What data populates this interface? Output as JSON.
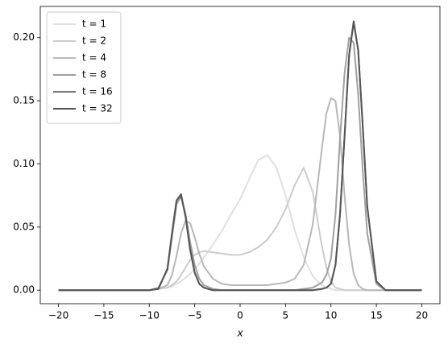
{
  "chart_data": {
    "type": "line",
    "xlabel": "x",
    "x": [
      -20,
      -15,
      -10,
      -9,
      -8,
      -7.5,
      -7,
      -6.5,
      -6,
      -5.5,
      -5,
      -4.5,
      -4,
      -3,
      -2,
      -1,
      0,
      1,
      2,
      3,
      4,
      5,
      6,
      7,
      8,
      9,
      9.5,
      10,
      10.5,
      11,
      11.5,
      12,
      12.5,
      13,
      13.5,
      14,
      15,
      16,
      17,
      20
    ],
    "series": [
      {
        "name": "t = 1",
        "color": "#e0e0e0",
        "values": [
          0,
          0,
          0,
          0.001,
          0.002,
          0.003,
          0.005,
          0.007,
          0.01,
          0.013,
          0.017,
          0.021,
          0.026,
          0.036,
          0.047,
          0.06,
          0.072,
          0.088,
          0.103,
          0.107,
          0.097,
          0.075,
          0.048,
          0.026,
          0.011,
          0.004,
          0.002,
          0.001,
          0,
          0,
          0,
          0,
          0,
          0,
          0,
          0,
          0,
          0,
          0,
          0
        ]
      },
      {
        "name": "t = 2",
        "color": "#cccccc",
        "values": [
          0,
          0,
          0,
          0.001,
          0.002,
          0.004,
          0.007,
          0.012,
          0.018,
          0.024,
          0.028,
          0.03,
          0.031,
          0.03,
          0.029,
          0.028,
          0.028,
          0.03,
          0.034,
          0.04,
          0.05,
          0.064,
          0.083,
          0.097,
          0.078,
          0.035,
          0.018,
          0.007,
          0.002,
          0.001,
          0,
          0,
          0,
          0,
          0,
          0,
          0,
          0,
          0,
          0
        ]
      },
      {
        "name": "t = 4",
        "color": "#b8b8b8",
        "values": [
          0,
          0,
          0,
          0.001,
          0.004,
          0.012,
          0.027,
          0.045,
          0.055,
          0.053,
          0.042,
          0.029,
          0.019,
          0.009,
          0.005,
          0.004,
          0.004,
          0.004,
          0.004,
          0.004,
          0.005,
          0.006,
          0.009,
          0.02,
          0.052,
          0.112,
          0.14,
          0.152,
          0.15,
          0.122,
          0.075,
          0.036,
          0.013,
          0.004,
          0.001,
          0,
          0,
          0,
          0,
          0
        ]
      },
      {
        "name": "t = 8",
        "color": "#a0a0a0",
        "values": [
          0,
          0,
          0,
          0.002,
          0.016,
          0.042,
          0.068,
          0.074,
          0.06,
          0.038,
          0.02,
          0.009,
          0.004,
          0.001,
          0,
          0,
          0,
          0,
          0,
          0,
          0,
          0,
          0,
          0.001,
          0.002,
          0.006,
          0.012,
          0.025,
          0.06,
          0.12,
          0.172,
          0.2,
          0.196,
          0.155,
          0.095,
          0.045,
          0.005,
          0,
          0,
          0
        ]
      },
      {
        "name": "t = 16",
        "color": "#7a7a7a",
        "values": [
          0,
          0,
          0,
          0.001,
          0.017,
          0.045,
          0.071,
          0.075,
          0.058,
          0.032,
          0.014,
          0.005,
          0.002,
          0,
          0,
          0,
          0,
          0,
          0,
          0,
          0,
          0,
          0,
          0,
          0,
          0.001,
          0.002,
          0.005,
          0.02,
          0.06,
          0.122,
          0.186,
          0.212,
          0.19,
          0.13,
          0.066,
          0.007,
          0,
          0,
          0
        ]
      },
      {
        "name": "t = 32",
        "color": "#555555",
        "values": [
          0,
          0,
          0,
          0.001,
          0.017,
          0.045,
          0.071,
          0.076,
          0.058,
          0.032,
          0.014,
          0.005,
          0.002,
          0,
          0,
          0,
          0,
          0,
          0,
          0,
          0,
          0,
          0,
          0,
          0,
          0.001,
          0.002,
          0.005,
          0.02,
          0.06,
          0.122,
          0.186,
          0.213,
          0.19,
          0.13,
          0.066,
          0.007,
          0,
          0,
          0
        ]
      }
    ],
    "xlim": [
      -22,
      22
    ],
    "ylim": [
      -0.0107,
      0.2247
    ],
    "xticks": [
      {
        "value": -20,
        "label": "−20"
      },
      {
        "value": -15,
        "label": "−15"
      },
      {
        "value": -10,
        "label": "−10"
      },
      {
        "value": -5,
        "label": "−5"
      },
      0,
      5,
      10,
      15,
      20
    ],
    "yticks": [
      {
        "value": 0,
        "label": "0.00"
      },
      {
        "value": 0.05,
        "label": "0.05"
      },
      {
        "value": 0.1,
        "label": "0.10"
      },
      {
        "value": 0.15,
        "label": "0.15"
      },
      {
        "value": 0.2,
        "label": "0.20"
      }
    ],
    "legend": "upper left"
  }
}
